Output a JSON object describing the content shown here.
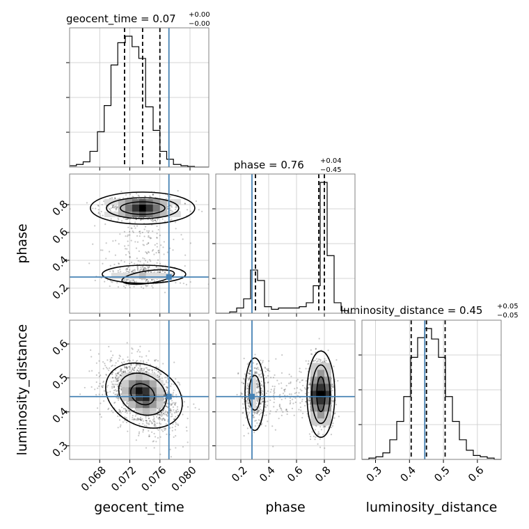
{
  "chart_data": {
    "type": "corner",
    "parameters": [
      "geocent_time",
      "phase",
      "luminosity_distance"
    ],
    "titles": [
      {
        "param": "geocent_time",
        "text": "geocent_time = 0.07",
        "plus": "+0.00",
        "minus": "−0.00"
      },
      {
        "param": "phase",
        "text": "phase = 0.76",
        "plus": "+0.04",
        "minus": "−0.45"
      },
      {
        "param": "luminosity_distance",
        "text": "luminosity_distance = 0.45",
        "plus": "+0.05",
        "minus": "−0.05"
      }
    ],
    "axes": {
      "geocent_time": {
        "range": [
          0.064,
          0.0825
        ],
        "ticks": [
          0.068,
          0.072,
          0.076,
          0.08
        ],
        "tick_labels": [
          "0.068",
          "0.072",
          "0.076",
          "0.080"
        ]
      },
      "phase": {
        "range": [
          0.02,
          1.02
        ],
        "ticks": [
          0.2,
          0.4,
          0.6,
          0.8
        ],
        "tick_labels": [
          "0.2",
          "0.4",
          "0.6",
          "0.8"
        ]
      },
      "luminosity_distance": {
        "range": [
          0.26,
          0.67
        ],
        "ticks": [
          0.3,
          0.4,
          0.5,
          0.6
        ],
        "tick_labels": [
          "0.3",
          "0.4",
          "0.5",
          "0.6"
        ]
      }
    },
    "truths": {
      "geocent_time": 0.0772,
      "phase": 0.28,
      "luminosity_distance": 0.445
    },
    "quantiles": {
      "geocent_time": [
        0.0713,
        0.0737,
        0.076
      ],
      "phase": [
        0.305,
        0.76,
        0.8
      ],
      "luminosity_distance": [
        0.405,
        0.45,
        0.505
      ]
    },
    "histograms": {
      "geocent_time": {
        "edges": [
          0.064,
          0.0649,
          0.0658,
          0.0667,
          0.0677,
          0.0686,
          0.0695,
          0.0704,
          0.0714,
          0.0723,
          0.0732,
          0.0741,
          0.0751,
          0.076,
          0.0769,
          0.0778,
          0.0788,
          0.0797,
          0.0806,
          0.0815,
          0.0825
        ],
        "counts": [
          0.01,
          0.02,
          0.04,
          0.12,
          0.27,
          0.47,
          0.78,
          0.95,
          1.0,
          0.92,
          0.83,
          0.46,
          0.28,
          0.12,
          0.06,
          0.02,
          0.01,
          0.005,
          0,
          0
        ]
      },
      "phase": {
        "edges": [
          0.02,
          0.07,
          0.12,
          0.17,
          0.22,
          0.27,
          0.32,
          0.37,
          0.42,
          0.47,
          0.52,
          0.57,
          0.62,
          0.67,
          0.72,
          0.77,
          0.82,
          0.87,
          0.92,
          0.97,
          1.02
        ],
        "counts": [
          0,
          0,
          0.01,
          0.04,
          0.11,
          0.33,
          0.25,
          0.05,
          0.03,
          0.04,
          0.04,
          0.04,
          0.05,
          0.08,
          0.21,
          1.0,
          0.44,
          0.08,
          0.02,
          0
        ]
      },
      "luminosity_distance": {
        "edges": [
          0.26,
          0.2805,
          0.301,
          0.3215,
          0.342,
          0.3625,
          0.383,
          0.4035,
          0.424,
          0.4445,
          0.465,
          0.4855,
          0.506,
          0.5265,
          0.547,
          0.5675,
          0.588,
          0.6085,
          0.629,
          0.6495,
          0.67
        ],
        "counts": [
          0,
          0.01,
          0.02,
          0.05,
          0.15,
          0.29,
          0.48,
          0.78,
          0.93,
          1.0,
          0.92,
          0.78,
          0.48,
          0.29,
          0.15,
          0.07,
          0.03,
          0.02,
          0.01,
          0
        ]
      }
    }
  }
}
